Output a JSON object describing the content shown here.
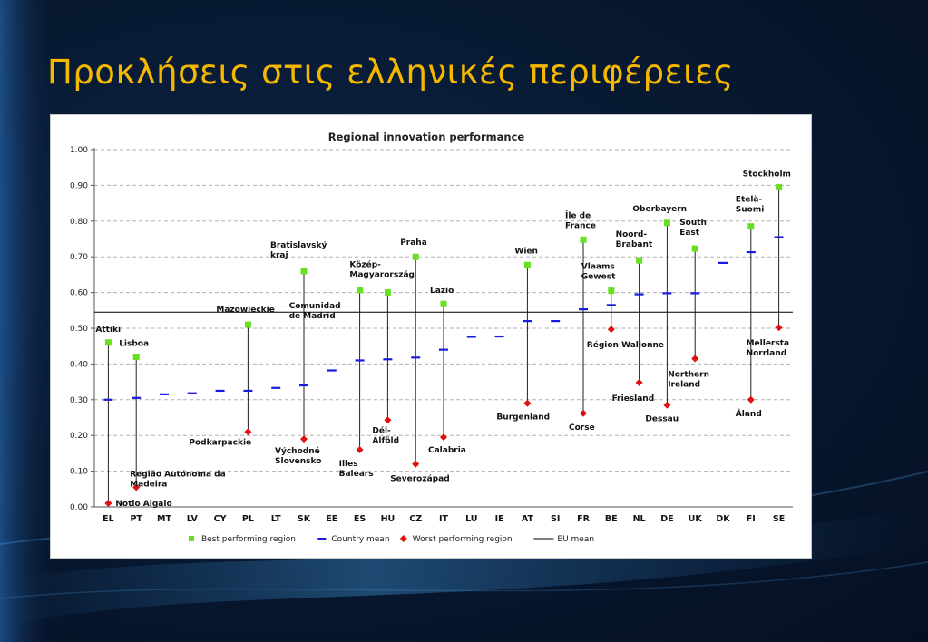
{
  "slide": {
    "title": "Προκλήσεις στις ελληνικές περιφέρειες"
  },
  "colors": {
    "best": "#66e020",
    "mean": "#1a1ae0",
    "worst": "#e01010",
    "eu_mean": "#000000",
    "title": "#f5b800"
  },
  "chart_data": {
    "type": "scatter",
    "title": "Regional innovation performance",
    "xlabel": "",
    "ylabel": "",
    "ylim": [
      0,
      1.0
    ],
    "yticks": [
      "0.00",
      "0.10",
      "0.20",
      "0.30",
      "0.40",
      "0.50",
      "0.60",
      "0.70",
      "0.80",
      "0.90",
      "1.00"
    ],
    "grid": "horizontal dashed",
    "legend_placement": "bottom",
    "legend": [
      {
        "key": "best",
        "label": "Best performing region"
      },
      {
        "key": "mean",
        "label": "Country mean"
      },
      {
        "key": "worst",
        "label": "Worst performing region"
      },
      {
        "key": "eu",
        "label": "EU mean"
      }
    ],
    "eu_mean": 0.545,
    "countries": [
      {
        "code": "EL",
        "mean": 0.3,
        "best": 0.46,
        "best_label": "Attiki",
        "worst": 0.01,
        "worst_label": "Notio Aigaio"
      },
      {
        "code": "PT",
        "mean": 0.305,
        "best": 0.42,
        "best_label": "Lisboa",
        "worst": 0.055,
        "worst_label": "Região Autónoma da Madeira"
      },
      {
        "code": "MT",
        "mean": 0.315
      },
      {
        "code": "LV",
        "mean": 0.318
      },
      {
        "code": "CY",
        "mean": 0.325
      },
      {
        "code": "PL",
        "mean": 0.325,
        "best": 0.51,
        "best_label": "Mazowieckie",
        "worst": 0.21,
        "worst_label": "Podkarpackie"
      },
      {
        "code": "LT",
        "mean": 0.333
      },
      {
        "code": "SK",
        "mean": 0.34,
        "best": 0.66,
        "best_label": "Bratislavský kraj",
        "worst": 0.19,
        "worst_label": "Východné Slovensko"
      },
      {
        "code": "EE",
        "mean": 0.382
      },
      {
        "code": "ES",
        "mean": 0.41,
        "best": 0.607,
        "best_label": "Comunidad de Madrid",
        "worst": 0.16,
        "worst_label": "Illes Balears"
      },
      {
        "code": "HU",
        "mean": 0.413,
        "best": 0.6,
        "best_label": "Közép-Magyarország",
        "worst": 0.243,
        "worst_label": "Dél-Alföld"
      },
      {
        "code": "CZ",
        "mean": 0.418,
        "best": 0.7,
        "best_label": "Praha",
        "worst": 0.12,
        "worst_label": "Severozápad"
      },
      {
        "code": "IT",
        "mean": 0.44,
        "best": 0.568,
        "best_label": "Lazio",
        "worst": 0.195,
        "worst_label": "Calabria"
      },
      {
        "code": "LU",
        "mean": 0.476
      },
      {
        "code": "IE",
        "mean": 0.477
      },
      {
        "code": "AT",
        "mean": 0.52,
        "best": 0.677,
        "best_label": "Wien",
        "worst": 0.29,
        "worst_label": "Burgenland"
      },
      {
        "code": "SI",
        "mean": 0.52
      },
      {
        "code": "FR",
        "mean": 0.553,
        "best": 0.748,
        "best_label": "Île de France",
        "worst": 0.262,
        "worst_label": "Corse"
      },
      {
        "code": "BE",
        "mean": 0.565,
        "best": 0.605,
        "best_label": "Vlaams Gewest",
        "worst": 0.497,
        "worst_label": "Région Wallonne"
      },
      {
        "code": "NL",
        "mean": 0.595,
        "best": 0.69,
        "best_label": "Noord-Brabant",
        "worst": 0.348,
        "worst_label": "Friesland"
      },
      {
        "code": "DE",
        "mean": 0.598,
        "best": 0.795,
        "best_label": "Oberbayern",
        "worst": 0.285,
        "worst_label": "Dessau"
      },
      {
        "code": "UK",
        "mean": 0.598,
        "best": 0.723,
        "best_label": "South East",
        "worst": 0.415,
        "worst_label": "Northern Ireland"
      },
      {
        "code": "DK",
        "mean": 0.683
      },
      {
        "code": "FI",
        "mean": 0.713,
        "best": 0.785,
        "best_label": "Etelä-Suomi",
        "worst": 0.3,
        "worst_label": "Åland"
      },
      {
        "code": "SE",
        "mean": 0.755,
        "best": 0.895,
        "best_label": "Stockholm",
        "worst": 0.502,
        "worst_label": "Mellersta Norrland"
      }
    ]
  }
}
